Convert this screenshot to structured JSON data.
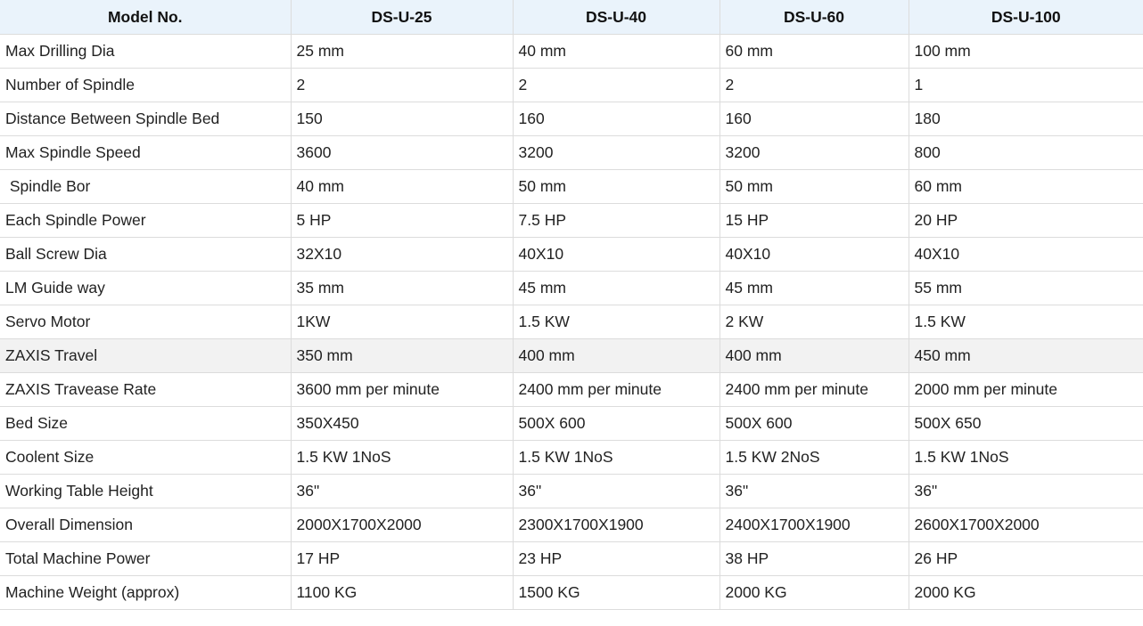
{
  "table": {
    "headers": [
      "Model No.",
      "DS-U-25",
      "DS-U-40",
      "DS-U-60",
      "DS-U-100"
    ],
    "highlighted_row_index": 9,
    "rows": [
      [
        "Max Drilling Dia",
        "25 mm",
        "40 mm",
        "60 mm",
        "100 mm"
      ],
      [
        "Number of Spindle",
        "2",
        "2",
        "2",
        "1"
      ],
      [
        "Distance Between Spindle Bed",
        "150",
        "160",
        "160",
        "180"
      ],
      [
        "Max Spindle Speed",
        "3600",
        "3200",
        "3200",
        "800"
      ],
      [
        " Spindle Bor",
        "40 mm",
        "50 mm",
        "50 mm",
        "60 mm"
      ],
      [
        "Each Spindle Power",
        "5 HP",
        "7.5 HP",
        "15 HP",
        "20 HP"
      ],
      [
        "Ball Screw Dia",
        "32X10",
        "40X10",
        "40X10",
        "40X10"
      ],
      [
        "LM Guide way",
        "35 mm",
        "45 mm",
        "45 mm",
        "55 mm"
      ],
      [
        "Servo Motor",
        "1KW",
        "1.5 KW",
        "2 KW",
        "1.5 KW"
      ],
      [
        "ZAXIS Travel",
        "350 mm",
        "400 mm",
        "400 mm",
        "450 mm"
      ],
      [
        "ZAXIS Travease Rate",
        "3600 mm per minute",
        "2400 mm per minute",
        "2400 mm per minute",
        "2000 mm per minute"
      ],
      [
        "Bed Size",
        "350X450",
        "500X 600",
        "500X 600",
        "500X 650"
      ],
      [
        "Coolent Size",
        "1.5 KW 1NoS",
        "1.5 KW 1NoS",
        "1.5 KW 2NoS",
        "1.5 KW 1NoS"
      ],
      [
        "Working Table Height",
        "36\"",
        "36\"",
        "36\"",
        "36\""
      ],
      [
        "Overall Dimension",
        "2000X1700X2000",
        "2300X1700X1900",
        "2400X1700X1900",
        "2600X1700X2000"
      ],
      [
        "Total Machine Power",
        "17 HP",
        "23 HP",
        "38 HP",
        "26 HP"
      ],
      [
        "Machine Weight (approx)",
        "1100 KG",
        "1500 KG",
        "2000 KG",
        "2000 KG"
      ]
    ]
  },
  "colors": {
    "header_bg": "#eaf3fb",
    "highlight_row_bg": "#f2f2f2",
    "border": "#dcdcdc",
    "text": "#222222"
  }
}
